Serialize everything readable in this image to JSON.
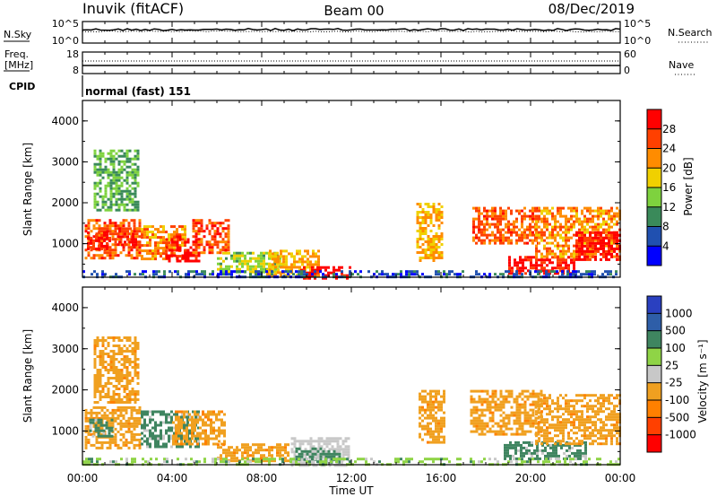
{
  "header": {
    "station": "Inuvik (fitACF)",
    "beam": "Beam 00",
    "date": "08/Dec/2019"
  },
  "top_panels": {
    "nsky_label": "N.Sky",
    "nsky_ticks": [
      "10^5",
      "10^0"
    ],
    "nsearch_label": "N.Search",
    "nsearch_ticks": [
      "10^5",
      "10^0"
    ],
    "freq_label": "Freq.",
    "freq_unit": "[MHz]",
    "freq_ticks": [
      "18",
      "8"
    ],
    "nave_label": "Nave",
    "nave_ticks": [
      "60",
      "0"
    ],
    "cpid_label": "CPID",
    "cpid_value": "normal (fast) 151"
  },
  "x_axis": {
    "label": "Time UT",
    "ticks": [
      "00:00",
      "04:00",
      "08:00",
      "12:00",
      "16:00",
      "20:00",
      "00:00"
    ]
  },
  "colors": {
    "power_scale": [
      "#0000ff",
      "#2050b0",
      "#3a8a5a",
      "#7ed23e",
      "#f0d000",
      "#ff8c00",
      "#ff4000",
      "#ff0000"
    ],
    "velocity_scale": [
      "#2a40c0",
      "#2e5ea8",
      "#3f8560",
      "#8fd446",
      "#c8c8c8",
      "#f0a020",
      "#ff8000",
      "#ff4000",
      "#ff0000"
    ]
  },
  "chart_data": [
    {
      "type": "heatmap",
      "name": "power",
      "ylabel": "Slant Range [km]",
      "xlabel": "",
      "x_range_hours": [
        0,
        24
      ],
      "ylim": [
        180,
        4500
      ],
      "y_ticks": [
        1000,
        2000,
        3000,
        4000
      ],
      "colorbar": {
        "label": "Power [dB]",
        "ticks": [
          "4",
          "8",
          "12",
          "16",
          "20",
          "24",
          "28"
        ],
        "min": 0,
        "max": 32
      },
      "regions": [
        {
          "t0": 0.1,
          "t1": 2.6,
          "r0": 650,
          "r1": 1600,
          "value": 25
        },
        {
          "t0": 0.2,
          "t1": 1.2,
          "r0": 900,
          "r1": 1300,
          "value": 30
        },
        {
          "t0": 1.6,
          "t1": 2.4,
          "r0": 1000,
          "r1": 1400,
          "value": 29
        },
        {
          "t0": 2.6,
          "t1": 4.6,
          "r0": 650,
          "r1": 1450,
          "value": 22
        },
        {
          "t0": 3.7,
          "t1": 5.2,
          "r0": 550,
          "r1": 1200,
          "value": 30
        },
        {
          "t0": 4.9,
          "t1": 6.5,
          "r0": 750,
          "r1": 1600,
          "value": 26
        },
        {
          "t0": 6.0,
          "t1": 9.0,
          "r0": 300,
          "r1": 800,
          "value": 15
        },
        {
          "t0": 8.2,
          "t1": 10.5,
          "r0": 250,
          "r1": 850,
          "value": 20
        },
        {
          "t0": 9.6,
          "t1": 11.9,
          "r0": 180,
          "r1": 450,
          "value": 30
        },
        {
          "t0": 0.5,
          "t1": 2.5,
          "r0": 1800,
          "r1": 3300,
          "value": 12
        },
        {
          "t0": 14.9,
          "t1": 16.1,
          "r0": 600,
          "r1": 2000,
          "value": 20
        },
        {
          "t0": 17.4,
          "t1": 20.3,
          "r0": 1000,
          "r1": 1900,
          "value": 25
        },
        {
          "t0": 19.0,
          "t1": 22.0,
          "r0": 300,
          "r1": 700,
          "value": 30
        },
        {
          "t0": 20.2,
          "t1": 24.0,
          "r0": 700,
          "r1": 1900,
          "value": 22
        },
        {
          "t0": 22.0,
          "t1": 24.0,
          "r0": 600,
          "r1": 1300,
          "value": 30
        },
        {
          "t0": 0.0,
          "t1": 24.0,
          "r0": 180,
          "r1": 350,
          "value": 6
        }
      ]
    },
    {
      "type": "heatmap",
      "name": "velocity",
      "ylabel": "Slant Range [km]",
      "xlabel": "Time UT",
      "x_range_hours": [
        0,
        24
      ],
      "ylim": [
        180,
        4500
      ],
      "y_ticks": [
        1000,
        2000,
        3000,
        4000
      ],
      "colorbar": {
        "label": "Velocity [m s⁻¹]",
        "ticks": [
          "1000",
          "500",
          "100",
          "25",
          "-25",
          "-100",
          "-500",
          "-1000"
        ]
      },
      "regions": [
        {
          "t0": 0.1,
          "t1": 2.6,
          "r0": 600,
          "r1": 1600,
          "value": -100
        },
        {
          "t0": 0.3,
          "t1": 1.3,
          "r0": 900,
          "r1": 1300,
          "value": 100
        },
        {
          "t0": 2.6,
          "t1": 5.2,
          "r0": 600,
          "r1": 1500,
          "value": 100
        },
        {
          "t0": 4.0,
          "t1": 6.3,
          "r0": 700,
          "r1": 1500,
          "value": -100
        },
        {
          "t0": 6.0,
          "t1": 9.2,
          "r0": 300,
          "r1": 700,
          "value": -100
        },
        {
          "t0": 9.3,
          "t1": 11.9,
          "r0": 180,
          "r1": 850,
          "value": 0
        },
        {
          "t0": 9.5,
          "t1": 11.5,
          "r0": 250,
          "r1": 600,
          "value": 100
        },
        {
          "t0": 0.5,
          "t1": 2.5,
          "r0": 1700,
          "r1": 3300,
          "value": -100
        },
        {
          "t0": 15.0,
          "t1": 16.2,
          "r0": 700,
          "r1": 2000,
          "value": -100
        },
        {
          "t0": 17.3,
          "t1": 20.5,
          "r0": 900,
          "r1": 2000,
          "value": -100
        },
        {
          "t0": 18.8,
          "t1": 22.5,
          "r0": 300,
          "r1": 750,
          "value": 100
        },
        {
          "t0": 20.2,
          "t1": 24.0,
          "r0": 700,
          "r1": 1900,
          "value": -100
        },
        {
          "t0": 0.0,
          "t1": 24.0,
          "r0": 180,
          "r1": 350,
          "value": 25
        }
      ]
    }
  ]
}
